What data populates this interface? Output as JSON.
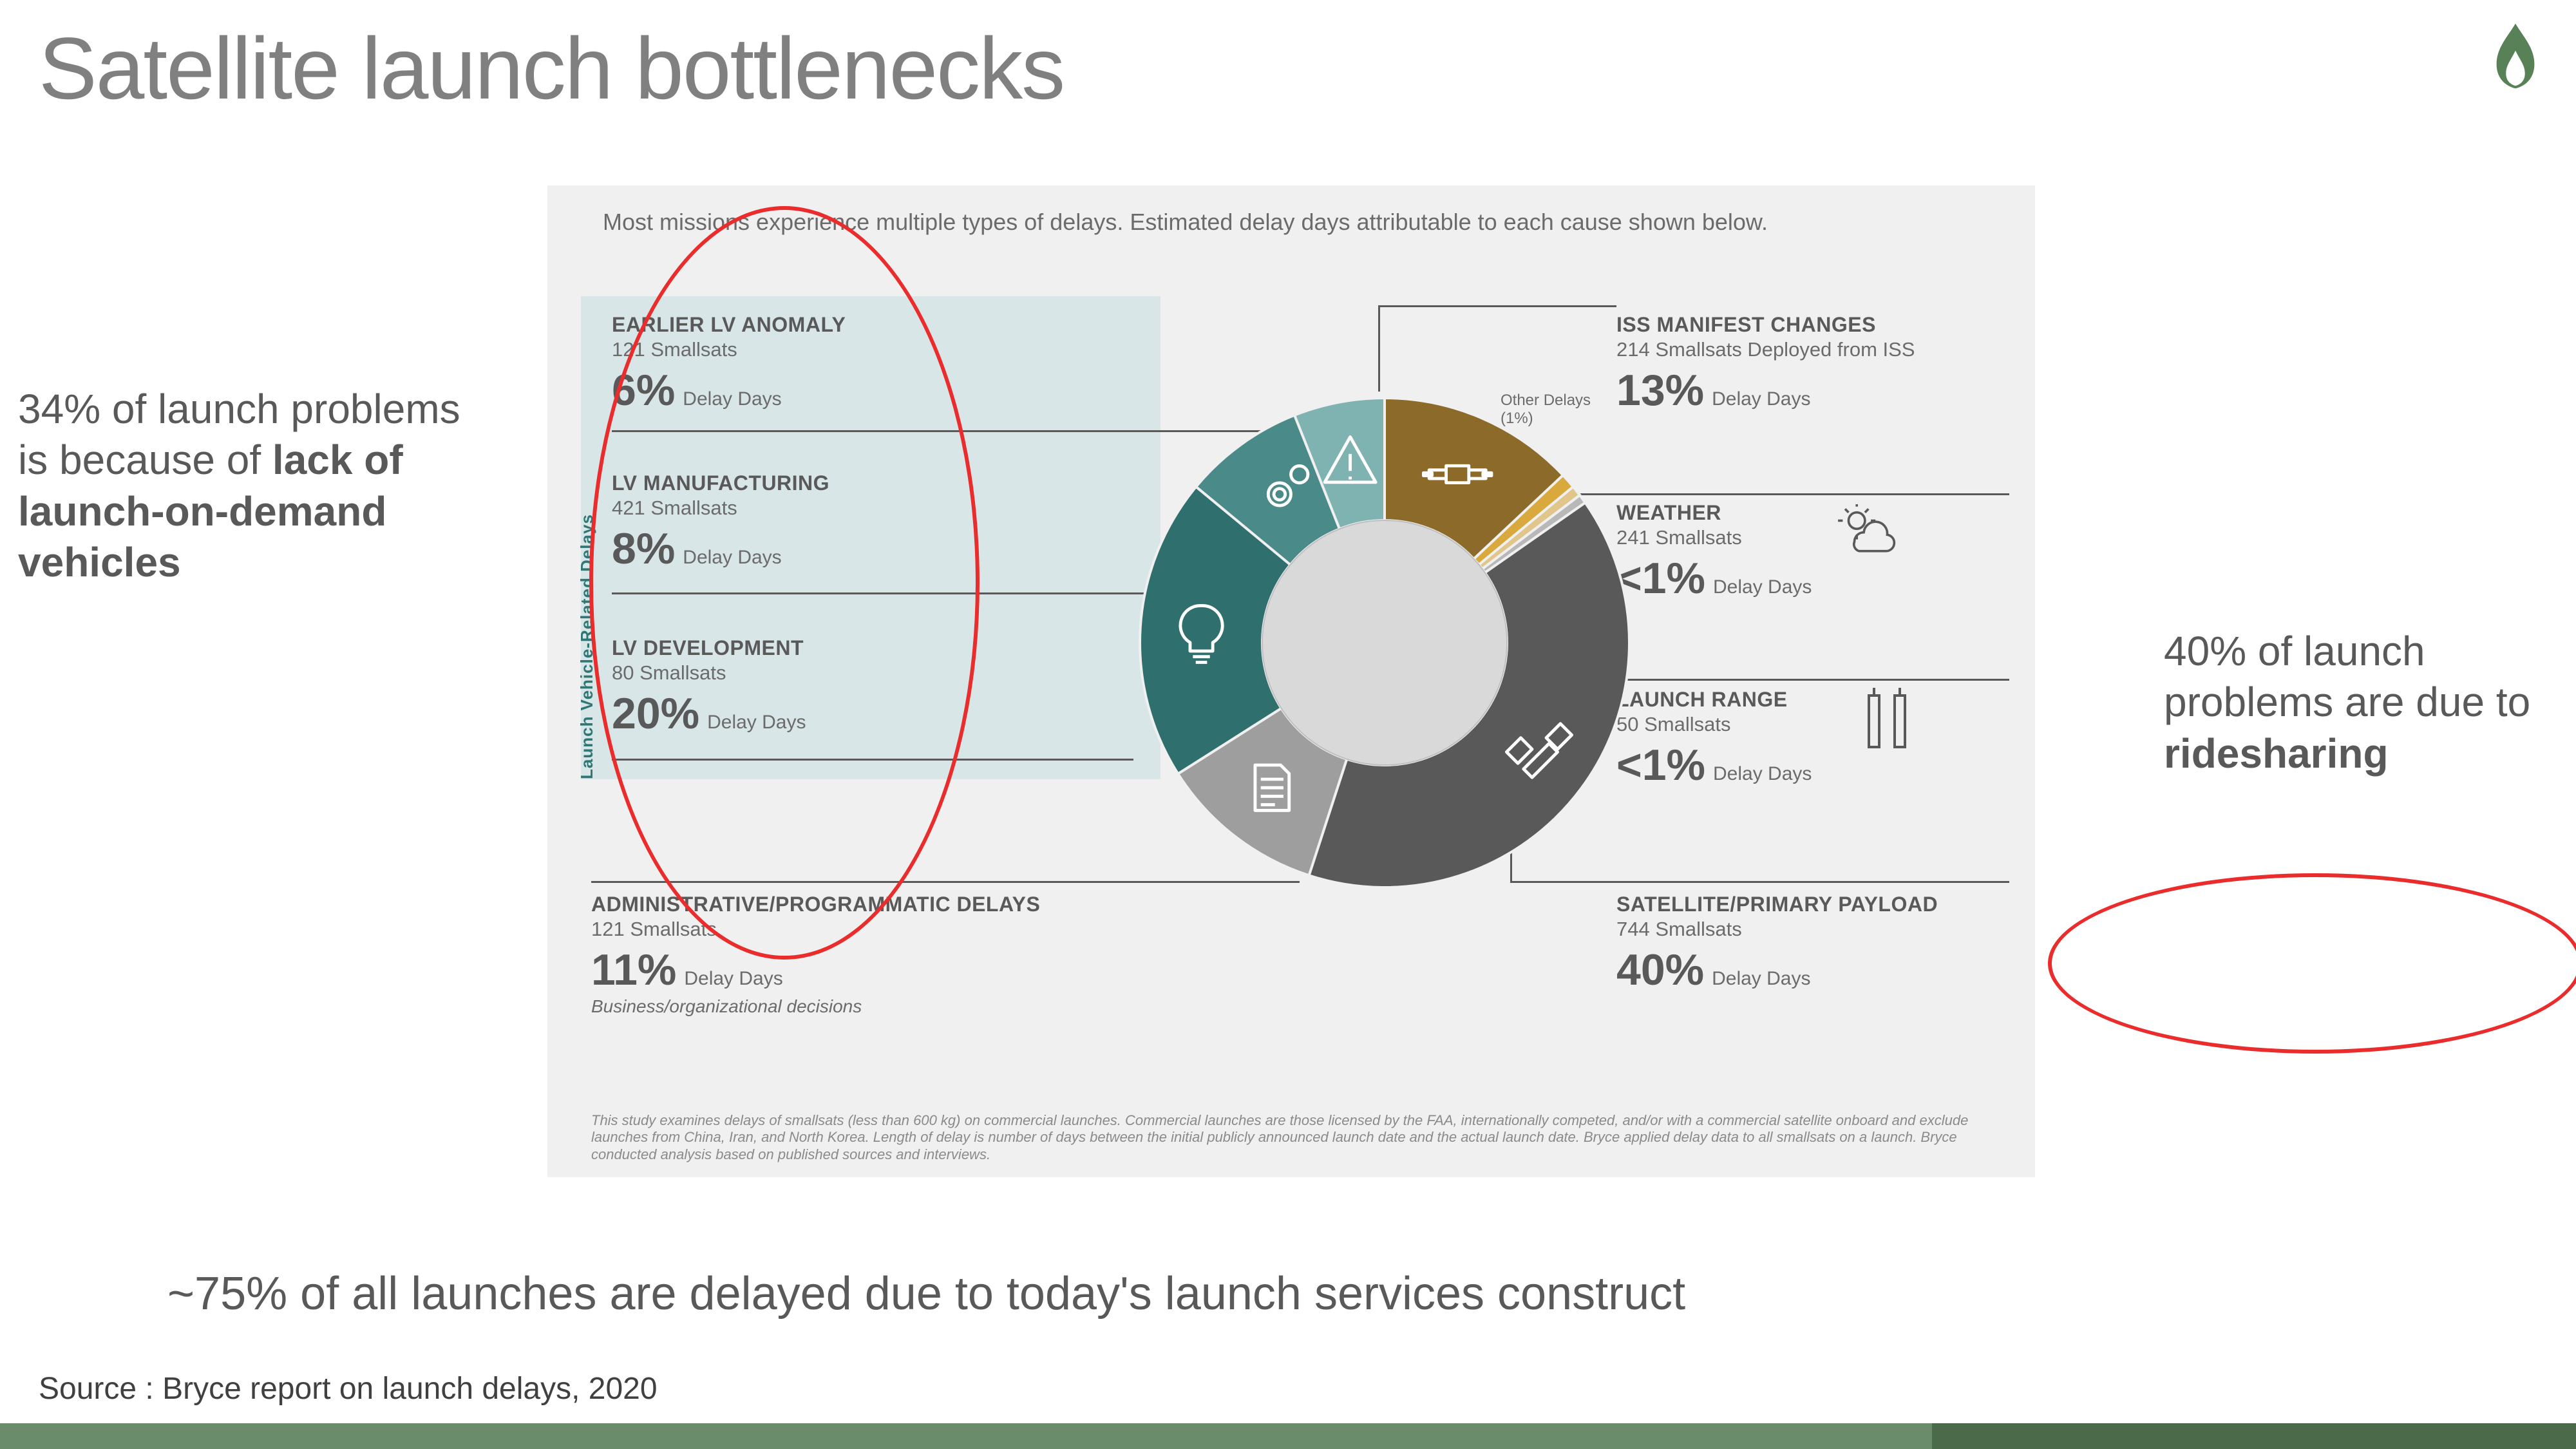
{
  "title": "Satellite launch bottlenecks",
  "logo_color": "#588157",
  "left_annotation": {
    "pct": "34%",
    "text_before": " of launch problems is because of ",
    "bold": "lack of launch-on-demand vehicles"
  },
  "right_annotation": {
    "pct": "40%",
    "text_before": " of launch problems are due to ",
    "bold": "ridesharing"
  },
  "conclusion": "~75% of all launches are delayed due to today's launch services construct",
  "source": "Source : Bryce report on launch delays, 2020",
  "bottom_bar": {
    "segments": [
      {
        "color": "#6b8c6b",
        "width_pct": 75
      },
      {
        "color": "#4a6a4a",
        "width_pct": 25
      }
    ]
  },
  "infographic": {
    "bg": "#f0f0f0",
    "description": "Most missions experience multiple types of delays. Estimated delay days attributable to each cause shown below.",
    "lv_group_label": "Launch Vehicle-Related Delays",
    "lv_group_bg": "#d8e6e7",
    "donut": {
      "inner_radius": 190,
      "outer_radius": 380,
      "center_fill": "#d9d9d9",
      "slices": [
        {
          "name": "iss",
          "pct_of_circle": 13,
          "color": "#8c6b2a",
          "icon": "iss"
        },
        {
          "name": "other",
          "pct_of_circle": 1,
          "color": "#d9a93d",
          "icon": null
        },
        {
          "name": "weather",
          "pct_of_circle": 0.7,
          "color": "#e0c68a",
          "icon": null
        },
        {
          "name": "range",
          "pct_of_circle": 0.6,
          "color": "#b8b8b8",
          "icon": null
        },
        {
          "name": "payload",
          "pct_of_circle": 39.7,
          "color": "#595959",
          "icon": "satellite"
        },
        {
          "name": "admin",
          "pct_of_circle": 11,
          "color": "#9e9e9e",
          "icon": "document"
        },
        {
          "name": "lv_dev",
          "pct_of_circle": 20,
          "color": "#2f6f6e",
          "icon": "bulb"
        },
        {
          "name": "lv_mfg",
          "pct_of_circle": 8,
          "color": "#4a8a88",
          "icon": "gears"
        },
        {
          "name": "lv_anom",
          "pct_of_circle": 6,
          "color": "#7eb3b2",
          "icon": "warning"
        }
      ]
    },
    "other_delays": {
      "label": "Other Delays",
      "pct": "(1%)"
    },
    "categories": {
      "lv_anom": {
        "title": "EARLIER LV ANOMALY",
        "sub": "121 Smallsats",
        "pct": "6%",
        "delay_label": "Delay Days"
      },
      "lv_mfg": {
        "title": "LV MANUFACTURING",
        "sub": "421 Smallsats",
        "pct": "8%",
        "delay_label": "Delay Days"
      },
      "lv_dev": {
        "title": "LV DEVELOPMENT",
        "sub": "80 Smallsats",
        "pct": "20%",
        "delay_label": "Delay Days"
      },
      "admin": {
        "title": "ADMINISTRATIVE/PROGRAMMATIC DELAYS",
        "sub": "121 Smallsats",
        "pct": "11%",
        "delay_label": "Delay Days",
        "note": "Business/organizational decisions"
      },
      "iss": {
        "title": "ISS MANIFEST CHANGES",
        "sub": "214 Smallsats Deployed from ISS",
        "pct": "13%",
        "delay_label": "Delay Days"
      },
      "weather": {
        "title": "WEATHER",
        "sub": "241 Smallsats",
        "pct": "<1%",
        "delay_label": "Delay Days"
      },
      "range": {
        "title": "LAUNCH RANGE",
        "sub": "50 Smallsats",
        "pct": "<1%",
        "delay_label": "Delay Days"
      },
      "payload": {
        "title": "SATELLITE/PRIMARY PAYLOAD",
        "sub": "744 Smallsats",
        "pct": "40%",
        "delay_label": "Delay Days"
      }
    },
    "footnote": "This study examines delays of smallsats (less than 600 kg) on commercial launches. Commercial launches are those licensed by the FAA, internationally competed, and/or with a commercial satellite onboard and exclude launches from China, Iran, and North Korea. Length of delay is number of days between the initial publicly announced launch date and the actual launch date. Bryce applied delay data to all smallsats on a launch. Bryce conducted analysis based on published sources and interviews."
  },
  "highlights": {
    "left_ellipse": {
      "color": "#ea2c2c"
    },
    "right_ellipse": {
      "color": "#ea2c2c"
    }
  }
}
